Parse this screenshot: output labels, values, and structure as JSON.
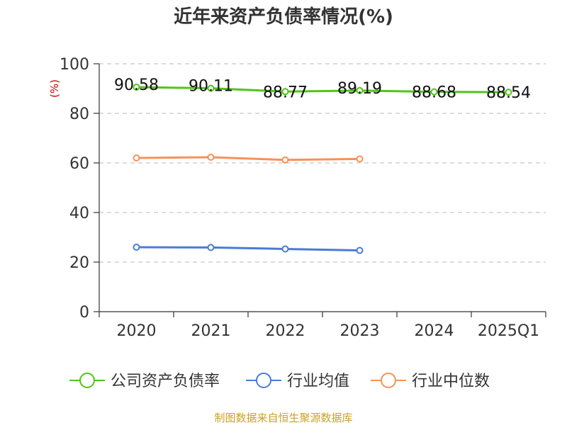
{
  "chart_data": {
    "type": "line",
    "title": "近年来资产负债率情况(%)",
    "y_unit": "(%)",
    "xlabel": "",
    "ylabel": "",
    "categories": [
      "2020",
      "2021",
      "2022",
      "2023",
      "2024",
      "2025Q1"
    ],
    "ylim": [
      0,
      100
    ],
    "y_ticks": [
      0,
      20,
      40,
      60,
      80,
      100
    ],
    "grid": "horizontal-dashed",
    "legend_position": "bottom",
    "series": [
      {
        "name": "公司资产负债率",
        "color": "#52c41a",
        "values": [
          90.58,
          90.11,
          88.77,
          89.19,
          88.68,
          88.54
        ],
        "data_labels": [
          "90.58",
          "90.11",
          "88.77",
          "89.19",
          "88.68",
          "88.54"
        ]
      },
      {
        "name": "行业均值",
        "color": "#4a7bd6",
        "values": [
          26.0,
          25.9,
          25.3,
          24.7,
          null,
          null
        ]
      },
      {
        "name": "行业中位数",
        "color": "#f5925b",
        "values": [
          62.0,
          62.3,
          61.2,
          61.6,
          null,
          null
        ]
      }
    ]
  },
  "footer": {
    "source": "制图数据来自恒生聚源数据库"
  }
}
